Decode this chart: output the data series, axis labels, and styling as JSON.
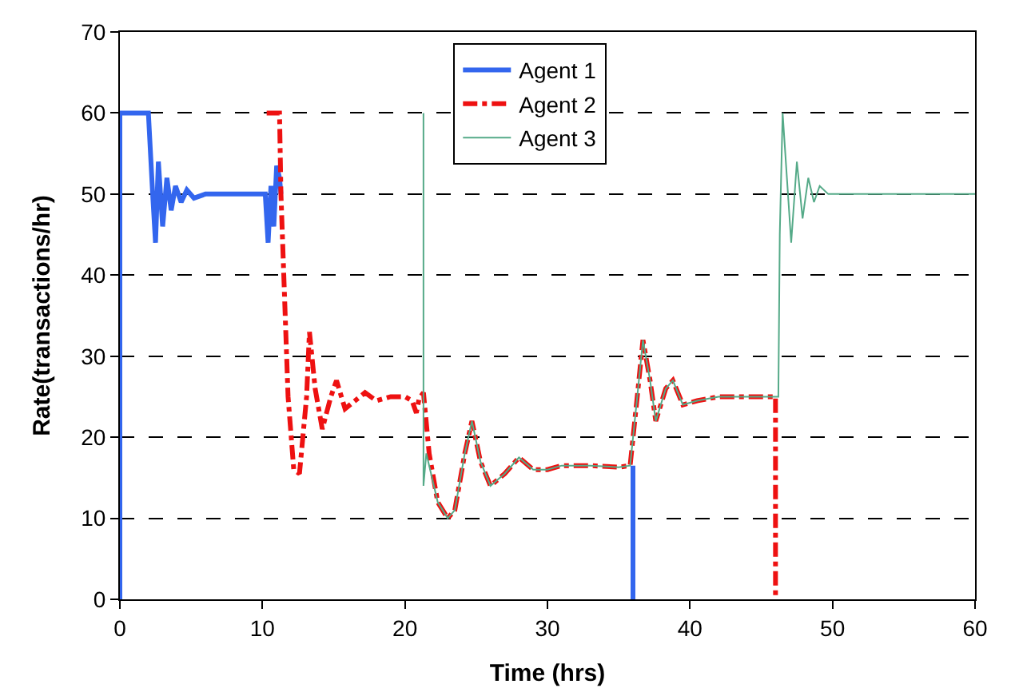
{
  "chart_data": {
    "type": "line",
    "xlabel": "Time (hrs)",
    "ylabel": "Rate(transactions/hr)",
    "xlim": [
      0,
      60
    ],
    "xticks": [
      0,
      10,
      20,
      30,
      40,
      50,
      60
    ],
    "ylim": [
      0,
      70
    ],
    "yticks": [
      0,
      10,
      20,
      30,
      40,
      50,
      60,
      70
    ],
    "grid": "y",
    "legend": "top",
    "marker": "none",
    "series": [
      {
        "name": "Agent 1",
        "color": "#3366ee",
        "line_style": "solid",
        "x": [
          0,
          0,
          2,
          2.3,
          2.5,
          2.7,
          3.0,
          3.3,
          3.6,
          3.9,
          4.3,
          4.7,
          5.2,
          6.0,
          7.0,
          10.2,
          10.4,
          10.6,
          10.8,
          11.0,
          11.2,
          11.3,
          null,
          36,
          36
        ],
        "values": [
          0,
          60,
          60,
          50,
          44,
          54,
          46,
          52,
          48,
          51,
          49,
          50.5,
          49.5,
          50,
          50,
          50,
          44,
          51,
          46,
          53.5,
          52,
          50,
          null,
          16.5,
          0
        ]
      },
      {
        "name": "Agent 2",
        "color": "#ee1111",
        "line_style": "dashed",
        "x": [
          10.3,
          11.2,
          11.3,
          11.5,
          11.8,
          12.2,
          12.6,
          13.1,
          13.3,
          13.7,
          14.2,
          14.8,
          15.2,
          15.8,
          16.5,
          17.2,
          18,
          19,
          20,
          20.5,
          20.8,
          21,
          21.3,
          21.7,
          22.3,
          23,
          23.5,
          24.2,
          24.7,
          25.3,
          26,
          27,
          28,
          29,
          30,
          31,
          33,
          35,
          35.8,
          36.3,
          36.7,
          37.2,
          37.6,
          38.3,
          38.8,
          39.5,
          40.5,
          42,
          44,
          46,
          46,
          46
        ],
        "values": [
          60,
          60,
          50,
          40,
          25,
          16,
          15.5,
          25,
          33,
          26,
          21,
          25,
          27,
          23.5,
          24.5,
          25.5,
          24.5,
          25,
          25,
          24.5,
          23,
          24.8,
          25.5,
          18,
          12,
          10,
          11,
          18,
          22,
          17,
          14,
          15.5,
          17.5,
          16,
          16,
          16.5,
          16.5,
          16.3,
          16.5,
          25,
          32,
          27,
          22,
          26,
          27,
          24,
          24.5,
          25,
          25,
          25,
          20,
          0
        ]
      },
      {
        "name": "Agent 3",
        "color": "#55aa88",
        "line_style": "solid",
        "x": [
          21.3,
          21.3,
          21.5,
          22.3,
          23,
          23.5,
          24.2,
          24.7,
          25.3,
          26,
          27,
          28,
          29,
          30,
          31,
          33,
          35,
          35.8,
          36.3,
          36.7,
          37.2,
          37.6,
          38.3,
          38.8,
          39.5,
          40.5,
          42,
          44,
          46,
          46.2,
          46.3,
          46.5,
          46.8,
          47.1,
          47.5,
          47.9,
          48.3,
          48.7,
          49.1,
          49.7,
          52,
          60
        ],
        "values": [
          60,
          14,
          18,
          12,
          10,
          11,
          18,
          22,
          17,
          14,
          15.5,
          17.5,
          16,
          16,
          16.5,
          16.5,
          16.3,
          16.5,
          25,
          32,
          27,
          22,
          26,
          27,
          24,
          24.5,
          25,
          25,
          25,
          25,
          45,
          60,
          52,
          44,
          54,
          47,
          52,
          49,
          51,
          50,
          50,
          50
        ]
      }
    ]
  }
}
